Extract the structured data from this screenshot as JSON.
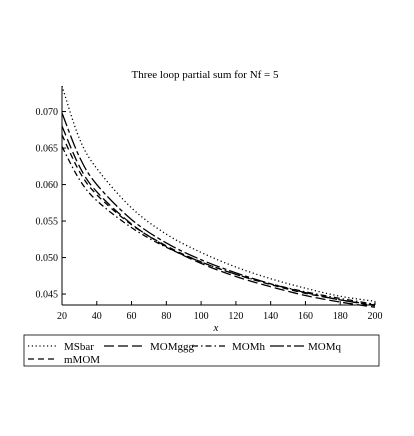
{
  "chart_data": {
    "type": "line",
    "title": "Three loop partial sum for Nf = 5",
    "xlabel": "x",
    "ylabel": "",
    "xlim": [
      20,
      200
    ],
    "ylim": [
      0.0435,
      0.0735
    ],
    "x_ticks": [
      20,
      40,
      60,
      80,
      100,
      120,
      140,
      160,
      180,
      200
    ],
    "y_ticks": [
      0.045,
      0.05,
      0.055,
      0.06,
      0.065,
      0.07
    ],
    "y_tick_labels": [
      "0.045",
      "0.050",
      "0.055",
      "0.060",
      "0.065",
      "0.070"
    ],
    "grid": false,
    "legend_position": "bottom",
    "series": [
      {
        "name": "MSbar",
        "dash": "dotted",
        "x": [
          20,
          30,
          40,
          60,
          80,
          100,
          120,
          140,
          160,
          180,
          200
        ],
        "y": [
          0.0735,
          0.0663,
          0.0622,
          0.0568,
          0.0532,
          0.0507,
          0.0487,
          0.0471,
          0.0458,
          0.0447,
          0.044
        ]
      },
      {
        "name": "MOMggg",
        "dash": "long-dash",
        "x": [
          20,
          30,
          40,
          60,
          80,
          100,
          120,
          140,
          160,
          180,
          200
        ],
        "y": [
          0.068,
          0.0625,
          0.059,
          0.0546,
          0.0515,
          0.0492,
          0.0474,
          0.046,
          0.0448,
          0.0439,
          0.0432
        ]
      },
      {
        "name": "MOMh",
        "dash": "dash-dot",
        "x": [
          20,
          30,
          40,
          60,
          80,
          100,
          120,
          140,
          160,
          180,
          200
        ],
        "y": [
          0.0652,
          0.0607,
          0.0578,
          0.0541,
          0.0514,
          0.0494,
          0.0477,
          0.0464,
          0.0453,
          0.0444,
          0.0436
        ]
      },
      {
        "name": "MOMq",
        "dash": "long-short",
        "x": [
          20,
          30,
          40,
          60,
          80,
          100,
          120,
          140,
          160,
          180,
          200
        ],
        "y": [
          0.0698,
          0.0638,
          0.06,
          0.0552,
          0.052,
          0.0497,
          0.0479,
          0.0464,
          0.0452,
          0.0442,
          0.0435
        ]
      },
      {
        "name": "mMOM",
        "dash": "dashed",
        "x": [
          20,
          30,
          40,
          60,
          80,
          100,
          120,
          140,
          160,
          180,
          200
        ],
        "y": [
          0.0668,
          0.0618,
          0.0586,
          0.0545,
          0.0516,
          0.0494,
          0.0477,
          0.0463,
          0.0451,
          0.0442,
          0.0434
        ]
      }
    ]
  }
}
